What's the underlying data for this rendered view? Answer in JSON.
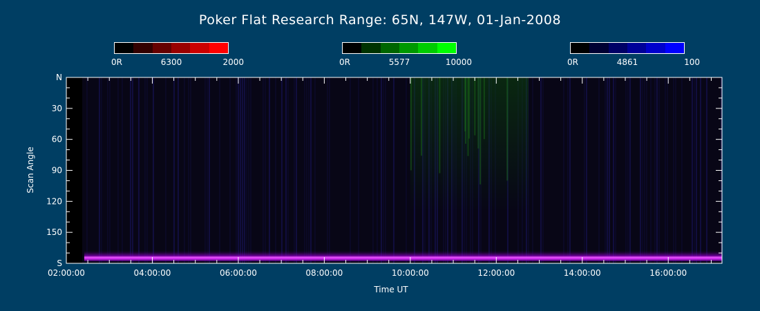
{
  "title": "Poker Flat Research Range: 65N, 147W, 01-Jan-2008",
  "colorbars": [
    {
      "name": "red",
      "labels": [
        "0R",
        "6300",
        "2000"
      ],
      "colors": [
        "#000000",
        "#330000",
        "#660000",
        "#990000",
        "#cc0000",
        "#ff0000"
      ]
    },
    {
      "name": "green",
      "labels": [
        "0R",
        "5577",
        "10000"
      ],
      "colors": [
        "#000000",
        "#003300",
        "#006600",
        "#009900",
        "#00cc00",
        "#00ff00"
      ]
    },
    {
      "name": "blue",
      "labels": [
        "0R",
        "4861",
        "100"
      ],
      "colors": [
        "#000000",
        "#000033",
        "#000066",
        "#000099",
        "#0000cc",
        "#0000ff"
      ]
    }
  ],
  "chart_data": {
    "type": "heatmap",
    "title": "Poker Flat Research Range: 65N, 147W, 01-Jan-2008",
    "xlabel": "Time UT",
    "ylabel": "Scan Angle",
    "xlim": [
      "02:00:00",
      "17:15:00"
    ],
    "ylim": [
      0,
      180
    ],
    "x_ticks": [
      "02:00:00",
      "04:00:00",
      "06:00:00",
      "08:00:00",
      "10:00:00",
      "12:00:00",
      "14:00:00",
      "16:00:00"
    ],
    "y_ticks": [
      "N",
      "30",
      "60",
      "90",
      "120",
      "150",
      "S"
    ],
    "data_start": "02:25:00",
    "features": [
      {
        "label": "horizon emission band",
        "emission": "6300/4861",
        "time_range": [
          "02:25:00",
          "17:15:00"
        ],
        "angle_range": [
          168,
          178
        ]
      },
      {
        "label": "faint green emission",
        "emission": "5577",
        "time_range": [
          "10:00:00",
          "12:45:00"
        ],
        "angle_range": [
          0,
          130
        ]
      }
    ]
  }
}
